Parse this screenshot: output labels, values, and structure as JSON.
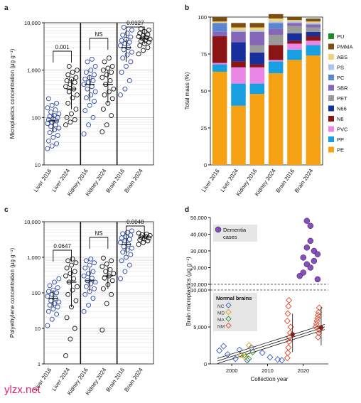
{
  "watermark": "ylzx.net",
  "chart_data": [
    {
      "panel": "a",
      "type": "scatter",
      "ylabel": "Microplastics concentration (μg g⁻¹)",
      "yscale": "log",
      "ylim": [
        10,
        10000
      ],
      "ticks": [
        "10",
        "100",
        "1,000",
        "10,000"
      ],
      "categories": [
        "Liver 2016",
        "Liver 2024",
        "Kidney 2016",
        "Kidney 2024",
        "Brain 2016",
        "Brain 2024"
      ],
      "values": [
        [
          22,
          25,
          28,
          32,
          38,
          42,
          48,
          55,
          60,
          65,
          70,
          75,
          80,
          85,
          90,
          95,
          100,
          105,
          110,
          120,
          130,
          145,
          160,
          180,
          200,
          250
        ],
        [
          70,
          80,
          90,
          100,
          120,
          150,
          200,
          260,
          300,
          350,
          400,
          450,
          500,
          550,
          600,
          650,
          700,
          800,
          900,
          1000,
          1200
        ],
        [
          45,
          70,
          100,
          140,
          180,
          220,
          260,
          300,
          350,
          400,
          450,
          500,
          550,
          600,
          650,
          700,
          800,
          900,
          1000,
          1200,
          1500,
          1700
        ],
        [
          50,
          70,
          110,
          150,
          200,
          250,
          300,
          350,
          400,
          500,
          600,
          700,
          800,
          900,
          1000,
          1100,
          1200,
          1500,
          1800
        ],
        [
          300,
          400,
          600,
          900,
          1200,
          1500,
          1800,
          2100,
          2400,
          2700,
          3000,
          3300,
          3600,
          3900,
          4200,
          4500,
          5000,
          5500,
          6000,
          7000,
          8000
        ],
        [
          2200,
          2600,
          3000,
          3300,
          3600,
          3900,
          4100,
          4300,
          4500,
          4700,
          4900,
          5100,
          5300,
          5600,
          6000,
          6500,
          7000,
          7500
        ]
      ],
      "brackets": [
        {
          "label": "0.001"
        },
        {
          "label": "NS"
        },
        {
          "label": "0.0127"
        }
      ]
    },
    {
      "panel": "b",
      "type": "bar",
      "ylabel": "Total mass (%)",
      "ylim": [
        0,
        100
      ],
      "ticks": [
        "0",
        "25",
        "50",
        "75",
        "100"
      ],
      "categories": [
        "Liver 2016",
        "Liver 2024",
        "Kidney 2016",
        "Kidney 2024",
        "Brain 2016",
        "Brain 2024"
      ],
      "legend_placement": "right",
      "series": [
        {
          "name": "PU",
          "color": "#1d8c2e",
          "values": [
            0,
            0,
            0,
            0,
            0,
            0
          ]
        },
        {
          "name": "PMMA",
          "color": "#7a4f14",
          "values": [
            3,
            3,
            3,
            3,
            2,
            2
          ]
        },
        {
          "name": "ABS",
          "color": "#f1d27a",
          "values": [
            1,
            2,
            2,
            2,
            1,
            1
          ]
        },
        {
          "name": "PS",
          "color": "#a9c4e8",
          "values": [
            0,
            1,
            1,
            1,
            1,
            1
          ]
        },
        {
          "name": "PC",
          "color": "#5a86d1",
          "values": [
            6,
            0,
            0,
            4,
            0,
            0
          ]
        },
        {
          "name": "SBR",
          "color": "#8566b7",
          "values": [
            3,
            7,
            9,
            4,
            2,
            2
          ]
        },
        {
          "name": "PET",
          "color": "#9a9a9a",
          "values": [
            0,
            0,
            5,
            7,
            5,
            3
          ]
        },
        {
          "name": "N66",
          "color": "#1a2f9e",
          "values": [
            0,
            13,
            8,
            0,
            5,
            3
          ]
        },
        {
          "name": "N6",
          "color": "#8b1414",
          "values": [
            18,
            4,
            2,
            10,
            2,
            3
          ]
        },
        {
          "name": "PVC",
          "color": "#ea86e6",
          "values": [
            1,
            11,
            11,
            1,
            4,
            3
          ]
        },
        {
          "name": "PP",
          "color": "#179fe0",
          "values": [
            5,
            15,
            7,
            8,
            7,
            7
          ]
        },
        {
          "name": "PE",
          "color": "#f6a014",
          "values": [
            63,
            40,
            48,
            62,
            71,
            74
          ]
        }
      ]
    },
    {
      "panel": "c",
      "type": "scatter",
      "ylabel": "Polyethylene concentration (μg g⁻¹)",
      "yscale": "log",
      "ylim": [
        1,
        10000
      ],
      "ticks": [
        "1",
        "10",
        "100",
        "1,000",
        "10,000"
      ],
      "categories": [
        "Liver 2016",
        "Liver 2024",
        "Kidney 2016",
        "Kidney 2024",
        "Brain 2016",
        "Brain 2024"
      ],
      "values": [
        [
          12,
          18,
          25,
          30,
          35,
          40,
          45,
          50,
          55,
          60,
          70,
          80,
          90,
          100,
          110,
          120,
          140,
          160,
          200,
          250
        ],
        [
          1.7,
          5,
          10,
          20,
          40,
          60,
          90,
          120,
          150,
          200,
          250,
          300,
          350,
          400,
          500,
          600,
          700,
          800,
          900
        ],
        [
          30,
          45,
          70,
          90,
          110,
          130,
          150,
          180,
          200,
          220,
          260,
          300,
          350,
          400,
          500,
          600,
          700,
          800,
          900
        ],
        [
          9,
          50,
          90,
          130,
          170,
          220,
          260,
          300,
          350,
          400,
          450,
          550,
          650,
          800,
          950
        ],
        [
          250,
          400,
          600,
          800,
          1000,
          1200,
          1400,
          1600,
          1800,
          2000,
          2300,
          2600,
          2900,
          3200,
          3500,
          3800,
          4200,
          4600,
          5000,
          5500
        ],
        [
          2300,
          2600,
          2900,
          3100,
          3300,
          3500,
          3700,
          3900,
          4100,
          4300,
          4500,
          4800
        ]
      ],
      "brackets": [
        {
          "label": "0.0647"
        },
        {
          "label": "NS"
        },
        {
          "label": "0.0048"
        }
      ]
    },
    {
      "panel": "d",
      "type": "scatter",
      "xlabel": "Collection year",
      "ylabel": "Brain microplastics (μg g⁻¹)",
      "xticks": [
        "2000",
        "2010",
        "2020"
      ],
      "yticks_lower": [
        "0",
        "5,000",
        "10,000"
      ],
      "yticks_upper": [
        "10,000",
        "20,000",
        "30,000",
        "40,000",
        "50,000"
      ],
      "legend": {
        "title": "Normal brains",
        "items": [
          {
            "name": "NC",
            "color": "#3b5bbf"
          },
          {
            "name": "MD",
            "color": "#e0a020"
          },
          {
            "name": "MA",
            "color": "#2a8a2a"
          },
          {
            "name": "NM",
            "color": "#e0452a"
          }
        ],
        "dementia": {
          "name": "Dementia cases",
          "color": "#8a4cc4"
        }
      },
      "series": [
        {
          "name": "Dementia cases",
          "points": [
            [
              2019,
              15000
            ],
            [
              2020,
              17000
            ],
            [
              2020,
              26000
            ],
            [
              2021,
              48000
            ],
            [
              2021,
              22000
            ],
            [
              2021,
              32000
            ],
            [
              2022,
              20000
            ],
            [
              2022,
              36000
            ],
            [
              2023,
              24000
            ],
            [
              2023,
              30000
            ],
            [
              2024,
              28000
            ],
            [
              2024,
              13000
            ],
            [
              2022,
              45000
            ]
          ]
        },
        {
          "name": "NC",
          "points": [
            [
              1997,
              1800
            ],
            [
              1998,
              2400
            ],
            [
              1999,
              1300
            ],
            [
              2001,
              700
            ],
            [
              2002,
              1900
            ],
            [
              2004,
              500
            ],
            [
              2005,
              2200
            ],
            [
              2009,
              1500
            ],
            [
              2011,
              900
            ],
            [
              2013,
              600
            ],
            [
              2014,
              500
            ]
          ]
        },
        {
          "name": "MD",
          "points": [
            [
              2003,
              1200
            ],
            [
              2004,
              900
            ],
            [
              2005,
              2500
            ]
          ]
        },
        {
          "name": "MA",
          "points": [
            [
              2004,
              1200
            ],
            [
              2005,
              700
            ],
            [
              2006,
              1600
            ]
          ]
        },
        {
          "name": "NM",
          "points": [
            [
              2016,
              800
            ],
            [
              2016,
              1500
            ],
            [
              2016,
              2200
            ],
            [
              2016,
              3000
            ],
            [
              2016,
              3600
            ],
            [
              2016,
              4200
            ],
            [
              2016,
              5000
            ],
            [
              2016,
              5800
            ],
            [
              2016,
              6800
            ],
            [
              2016,
              7800
            ],
            [
              2016,
              8600
            ],
            [
              2024,
              3600
            ],
            [
              2024,
              4200
            ],
            [
              2024,
              4600
            ],
            [
              2024,
              5000
            ],
            [
              2024,
              5400
            ],
            [
              2024,
              5800
            ],
            [
              2024,
              6200
            ],
            [
              2024,
              6600
            ],
            [
              2024,
              7000
            ],
            [
              2024,
              7600
            ]
          ]
        }
      ],
      "means": [
        [
          2017,
          4000
        ],
        [
          2025,
          4900
        ]
      ]
    }
  ]
}
